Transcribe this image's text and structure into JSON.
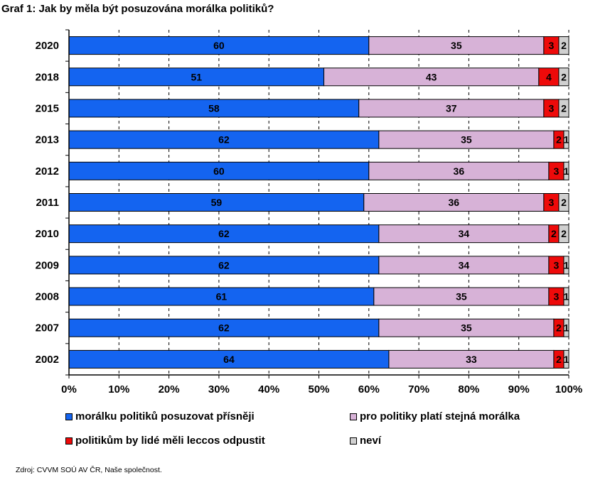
{
  "title": "Graf 1: Jak by měla být posuzována morálka politiků?",
  "source": "Zdroj: CVVM SOÚ AV ČR, Naše společnost.",
  "chart_data": {
    "type": "bar",
    "orientation": "horizontal",
    "stacked": "percent",
    "categories": [
      "2020",
      "2018",
      "2015",
      "2013",
      "2012",
      "2011",
      "2010",
      "2009",
      "2008",
      "2007",
      "2002"
    ],
    "series": [
      {
        "name": "morálku politiků posuzovat přísněji",
        "color": "#1464f0",
        "values": [
          60,
          51,
          58,
          62,
          60,
          59,
          62,
          62,
          61,
          62,
          64
        ]
      },
      {
        "name": "pro politiky platí stejná morálka",
        "color": "#d7b2d7",
        "values": [
          35,
          43,
          37,
          35,
          36,
          36,
          34,
          34,
          35,
          35,
          33
        ]
      },
      {
        "name": "politikům by lidé měli leccos odpustit",
        "color": "#ee0a0a",
        "values": [
          3,
          4,
          3,
          2,
          3,
          3,
          2,
          3,
          3,
          2,
          2
        ]
      },
      {
        "name": "neví",
        "color": "#d0d0d0",
        "values": [
          2,
          2,
          2,
          1,
          1,
          2,
          2,
          1,
          1,
          1,
          1
        ]
      }
    ],
    "xticks": [
      "0%",
      "10%",
      "20%",
      "30%",
      "40%",
      "50%",
      "60%",
      "70%",
      "80%",
      "90%",
      "100%"
    ],
    "xlim": [
      0,
      100
    ],
    "legend_position": "bottom",
    "grid": "vertical dashed"
  }
}
